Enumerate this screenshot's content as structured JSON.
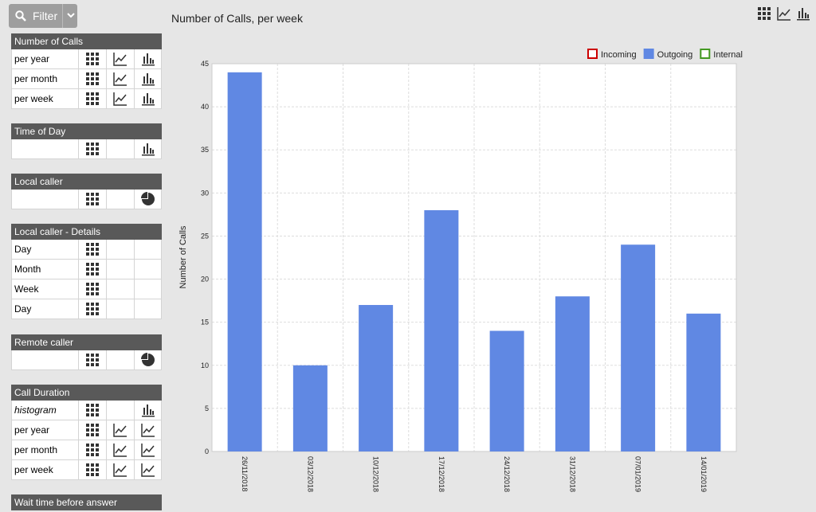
{
  "filter": {
    "label": "Filter"
  },
  "sidebar": [
    {
      "title": "Number of Calls",
      "rows": [
        "per year",
        "per month",
        "per week"
      ]
    },
    {
      "title": "Time of Day"
    },
    {
      "title": "Local caller"
    },
    {
      "title": "Local caller - Details",
      "rows": [
        "Day",
        "Month",
        "Week",
        "Day"
      ]
    },
    {
      "title": "Remote caller"
    },
    {
      "title": "Call Duration",
      "rows": [
        "histogram",
        "per year",
        "per month",
        "per week"
      ]
    },
    {
      "title": "Wait time before answer"
    }
  ],
  "chart_data": {
    "type": "bar",
    "title": "Number of Calls, per week",
    "ylabel": "Number of Calls",
    "categories": [
      "26/11/2018",
      "03/12/2018",
      "10/12/2018",
      "17/12/2018",
      "24/12/2018",
      "31/12/2018",
      "07/01/2019",
      "14/01/2019"
    ],
    "series": [
      {
        "name": "Incoming",
        "color": "#cc0000",
        "visible": false,
        "values": [
          null,
          null,
          null,
          null,
          null,
          null,
          null,
          null
        ]
      },
      {
        "name": "Outgoing",
        "color": "#6088e3",
        "visible": true,
        "values": [
          44,
          10,
          17,
          28,
          14,
          18,
          24,
          16
        ]
      },
      {
        "name": "Internal",
        "color": "#449922",
        "visible": false,
        "values": [
          null,
          null,
          null,
          null,
          null,
          null,
          null,
          null
        ]
      }
    ],
    "ylim": [
      0,
      45
    ],
    "yticks": [
      0,
      5,
      10,
      15,
      20,
      25,
      30,
      35,
      40,
      45
    ],
    "grid": true,
    "legend": "top-right"
  }
}
